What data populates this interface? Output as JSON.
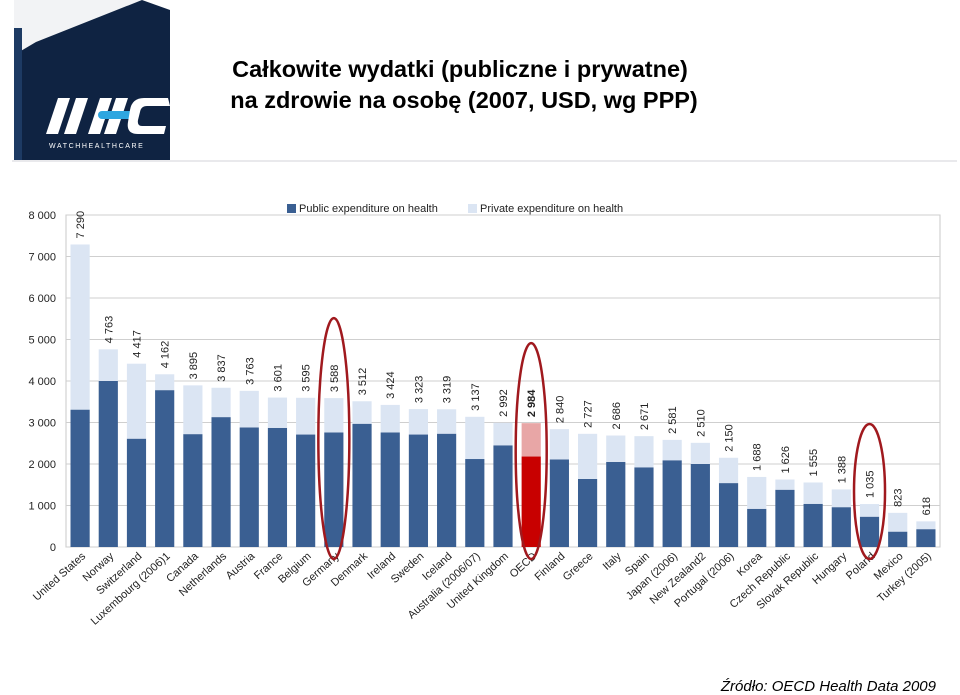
{
  "header": {
    "title_line1": "Całkowite wydatki (publiczne i prywatne)",
    "title_line2": "na zdrowie na osobę (2007, USD, wg PPP)",
    "logo_text": "WHC",
    "logo_tagline": "WATCHHEALTHCARE"
  },
  "source": "Źródło: OECD Health Data 2009",
  "colors": {
    "public": "#3a5f92",
    "private": "#dbe5f3",
    "oecd_public": "#c80000",
    "oecd_private": "#e8a6a6",
    "highlight": "#a0191e",
    "logo_bg": "#0f2342"
  },
  "chart_data": {
    "type": "bar",
    "stacked": true,
    "title": "",
    "xlabel": "",
    "ylabel": "",
    "ylim": [
      0,
      8000
    ],
    "yticks": [
      "0",
      "1 000",
      "2 000",
      "3 000",
      "4 000",
      "5 000",
      "6 000",
      "7 000",
      "8 000"
    ],
    "grid": true,
    "legend_position": "top",
    "categories": [
      "United States",
      "Norway",
      "Switzerland",
      "Luxembourg (2006)1",
      "Canada",
      "Netherlands",
      "Austria",
      "France",
      "Belgium",
      "Germany",
      "Denmark",
      "Ireland",
      "Sweden",
      "Iceland",
      "Australia (2006/07)",
      "United Kingdom",
      "OECD",
      "Finland",
      "Greece",
      "Italy",
      "Spain",
      "Japan (2006)",
      "New Zealand2",
      "Portugal (2006)",
      "Korea",
      "Czech Republic",
      "Slovak Republic",
      "Hungary",
      "Poland",
      "Mexico",
      "Turkey (2005)"
    ],
    "total_labels": [
      "7 290",
      "4 763",
      "4 417",
      "4 162",
      "3 895",
      "3 837",
      "3 763",
      "3 601",
      "3 595",
      "3 588",
      "3 512",
      "3 424",
      "3 323",
      "3 319",
      "3 137",
      "2 992",
      "2 984",
      "2 840",
      "2 727",
      "2 686",
      "2 671",
      "2 581",
      "2 510",
      "2 150",
      "1 688",
      "1 626",
      "1 555",
      "1 388",
      "1 035",
      "823",
      "618"
    ],
    "series": [
      {
        "name": "Public expenditure on health",
        "values": [
          3310,
          4000,
          2610,
          3780,
          2720,
          3130,
          2880,
          2870,
          2710,
          2760,
          2970,
          2760,
          2710,
          2730,
          2120,
          2450,
          2180,
          2110,
          1640,
          2050,
          1920,
          2090,
          2000,
          1540,
          920,
          1380,
          1040,
          960,
          730,
          370,
          430
        ]
      },
      {
        "name": "Private expenditure on health",
        "values": [
          3980,
          763,
          1807,
          382,
          1175,
          707,
          883,
          731,
          885,
          828,
          542,
          664,
          613,
          589,
          1017,
          542,
          804,
          730,
          1087,
          636,
          751,
          491,
          510,
          610,
          768,
          246,
          515,
          428,
          305,
          453,
          188
        ]
      }
    ],
    "highlighted": [
      "Germany",
      "OECD",
      "Poland"
    ]
  }
}
